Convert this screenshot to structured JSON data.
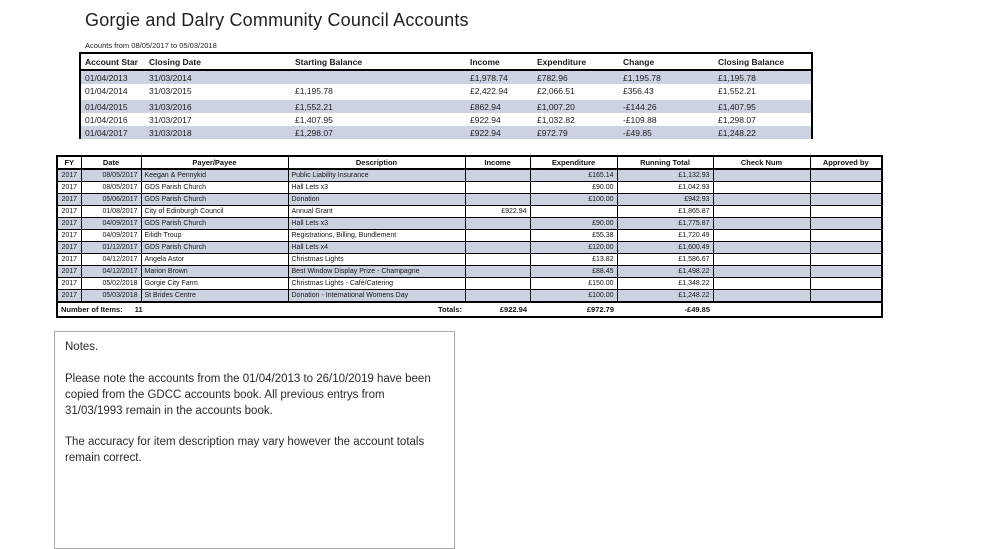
{
  "page": {
    "title": "Gorgie and Dalry Community Council Accounts",
    "subtitle": "Acounts from 08/05/2017 to 05/03/2018"
  },
  "summary_table": {
    "columns": [
      "Account Star",
      "Closing Date",
      "Starting Balance",
      "Income",
      "Expenditure",
      "Change",
      "Closing Balance"
    ],
    "gap_after_row": 2,
    "rows": [
      [
        "01/04/2013",
        "31/03/2014",
        "",
        "£1,978.74",
        "£782.96",
        "£1,195.78",
        "£1,195.78"
      ],
      [
        "01/04/2014",
        "31/03/2015",
        "£1,195.78",
        "£2,422.94",
        "£2,066.51",
        "£356.43",
        "£1,552.21"
      ],
      [
        "01/04/2015",
        "31/03/2016",
        "£1,552.21",
        "£862.94",
        "£1,007.20",
        "-£144.26",
        "£1,407.95"
      ],
      [
        "01/04/2016",
        "31/03/2017",
        "£1,407.95",
        "£922.94",
        "£1,032.82",
        "-£109.88",
        "£1,298.07"
      ],
      [
        "01/04/2017",
        "31/03/2018",
        "£1,298.07",
        "£922.94",
        "£972.79",
        "-£49.85",
        "£1,248.22"
      ]
    ]
  },
  "ledger_table": {
    "columns": [
      "FY",
      "Date",
      "Payer/Payee",
      "Description",
      "Income",
      "Expenditure",
      "Running Total",
      "Check Num",
      "Approved by"
    ],
    "rows": [
      {
        "fy": "2017",
        "date": "08/05/2017",
        "payer": "Keegan & Pennykid",
        "description": "Public Liability Insurance",
        "income": "",
        "expenditure": "£165.14",
        "running_total": "£1,132.93",
        "check_num": "",
        "approved_by": ""
      },
      {
        "fy": "2017",
        "date": "08/05/2017",
        "payer": "GDS Parish Church",
        "description": "Hall Lets x3",
        "income": "",
        "expenditure": "£90.00",
        "running_total": "£1,042.93",
        "check_num": "",
        "approved_by": ""
      },
      {
        "fy": "2017",
        "date": "05/06/2017",
        "payer": "GDS Parish Church",
        "description": "Donation",
        "income": "",
        "expenditure": "£100.00",
        "running_total": "£942.93",
        "check_num": "",
        "approved_by": ""
      },
      {
        "fy": "2017",
        "date": "01/08/2017",
        "payer": "City of Edinburgh Council",
        "description": "Annual Grant",
        "income": "£922.94",
        "expenditure": "",
        "running_total": "£1,865.87",
        "check_num": "",
        "approved_by": ""
      },
      {
        "fy": "2017",
        "date": "04/09/2017",
        "payer": "GDS Parish Church",
        "description": "Hall Lets x3",
        "income": "",
        "expenditure": "£90.00",
        "running_total": "£1,775.87",
        "check_num": "",
        "approved_by": ""
      },
      {
        "fy": "2017",
        "date": "04/09/2017",
        "payer": "Eilidh Troup",
        "description": "Registrations, Billing, Bundlement",
        "income": "",
        "expenditure": "£55.38",
        "running_total": "£1,720.49",
        "check_num": "",
        "approved_by": ""
      },
      {
        "fy": "2017",
        "date": "01/12/2017",
        "payer": "GDS Parish Church",
        "description": "Hall Lets x4",
        "income": "",
        "expenditure": "£120.00",
        "running_total": "£1,600.49",
        "check_num": "",
        "approved_by": ""
      },
      {
        "fy": "2017",
        "date": "04/12/2017",
        "payer": "Angela Astor",
        "description": "Christmas Lights",
        "income": "",
        "expenditure": "£13.82",
        "running_total": "£1,586.67",
        "check_num": "",
        "approved_by": ""
      },
      {
        "fy": "2017",
        "date": "04/12/2017",
        "payer": "Marion Brown",
        "description": "Best Window Display Prize - Champagne",
        "income": "",
        "expenditure": "£88.45",
        "running_total": "£1,498.22",
        "check_num": "",
        "approved_by": ""
      },
      {
        "fy": "2017",
        "date": "05/02/2018",
        "payer": "Gorgie City Farm",
        "description": "Christmas Lights - Café/Catering",
        "income": "",
        "expenditure": "£150.00",
        "running_total": "£1,348.22",
        "check_num": "",
        "approved_by": ""
      },
      {
        "fy": "2017",
        "date": "05/03/2018",
        "payer": "St Brides Centre",
        "description": "Donation - International Womens Day",
        "income": "",
        "expenditure": "£100.00",
        "running_total": "£1,248.22",
        "check_num": "",
        "approved_by": ""
      }
    ],
    "footer": {
      "items_label": "Number of Items:",
      "items_count": "11",
      "totals_label": "Totals:",
      "income_total": "£922.94",
      "expenditure_total": "£972.79",
      "change_total": "-£49.85"
    }
  },
  "notes": {
    "heading": "Notes.",
    "paragraphs": [
      "Please note the accounts from the 01/04/2013 to 26/10/2019 have been copied from the GDCC accounts book. All previous entrys from 31/03/1993 remain in the accounts book.",
      "The accuracy for item description may vary however the account totals remain correct."
    ]
  },
  "colors": {
    "stripe": "#cdd2e3",
    "running_total_text": "#5a5a5a",
    "table_border": "#000000",
    "notes_border": "#a9a9a9"
  }
}
